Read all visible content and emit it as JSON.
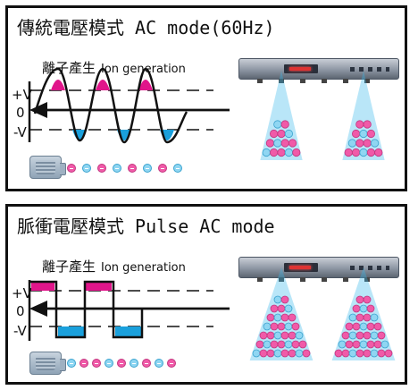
{
  "panels": [
    {
      "title": "傳統電壓模式 AC mode(60Hz)",
      "ion_label_zh": "離子產生",
      "ion_label_en": "Ion generation",
      "axis": {
        "plus": "+V",
        "zero": "0",
        "minus": "-V"
      },
      "waveform": "sine",
      "ion_row_signs": [
        "+",
        "-",
        "+",
        "-",
        "+",
        "-",
        "+",
        "-"
      ],
      "pyramid_rows": 4
    },
    {
      "title": "脈衝電壓模式 Pulse AC mode",
      "ion_label_zh": "離子產生",
      "ion_label_en": "Ion generation",
      "axis": {
        "plus": "+V",
        "zero": "0",
        "minus": "-V"
      },
      "waveform": "square",
      "ion_row_signs": [
        "-",
        "+",
        "+",
        "-",
        "+",
        "-",
        "+",
        "-",
        "+"
      ],
      "pyramid_rows": 7
    }
  ],
  "colors": {
    "positive": "#f05aa8",
    "negative": "#8fd6f2",
    "glow": "#37b6ea",
    "line": "#111111"
  },
  "icons": {
    "device": "ionizer-bar-icon",
    "fan": "blower-icon"
  }
}
